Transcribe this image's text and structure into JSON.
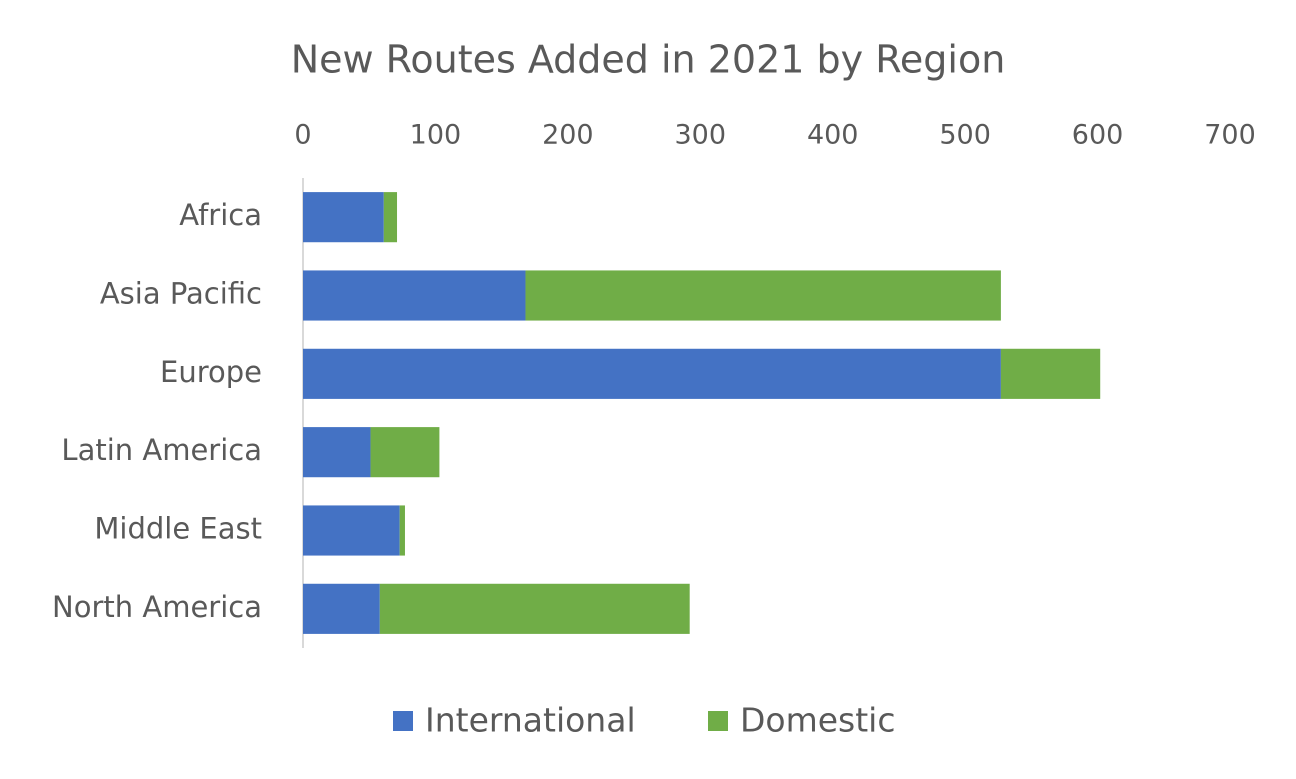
{
  "chart_data": {
    "type": "stacked-bar",
    "orientation": "horizontal",
    "title": "New Routes Added in 2021 by Region",
    "categories": [
      "Africa",
      "Asia Pacific",
      "Europe",
      "Latin America",
      "Middle East",
      "North America"
    ],
    "series": [
      {
        "name": "International",
        "color": "#4472c4",
        "values": [
          61,
          168,
          527,
          51,
          73,
          58
        ]
      },
      {
        "name": "Domestic",
        "color": "#70ad47",
        "values": [
          10,
          359,
          75,
          52,
          4,
          234
        ]
      }
    ],
    "xlim": [
      0,
      700
    ],
    "xticks": [
      0,
      100,
      200,
      300,
      400,
      500,
      600,
      700
    ],
    "grid": false,
    "legend": "bottom"
  }
}
